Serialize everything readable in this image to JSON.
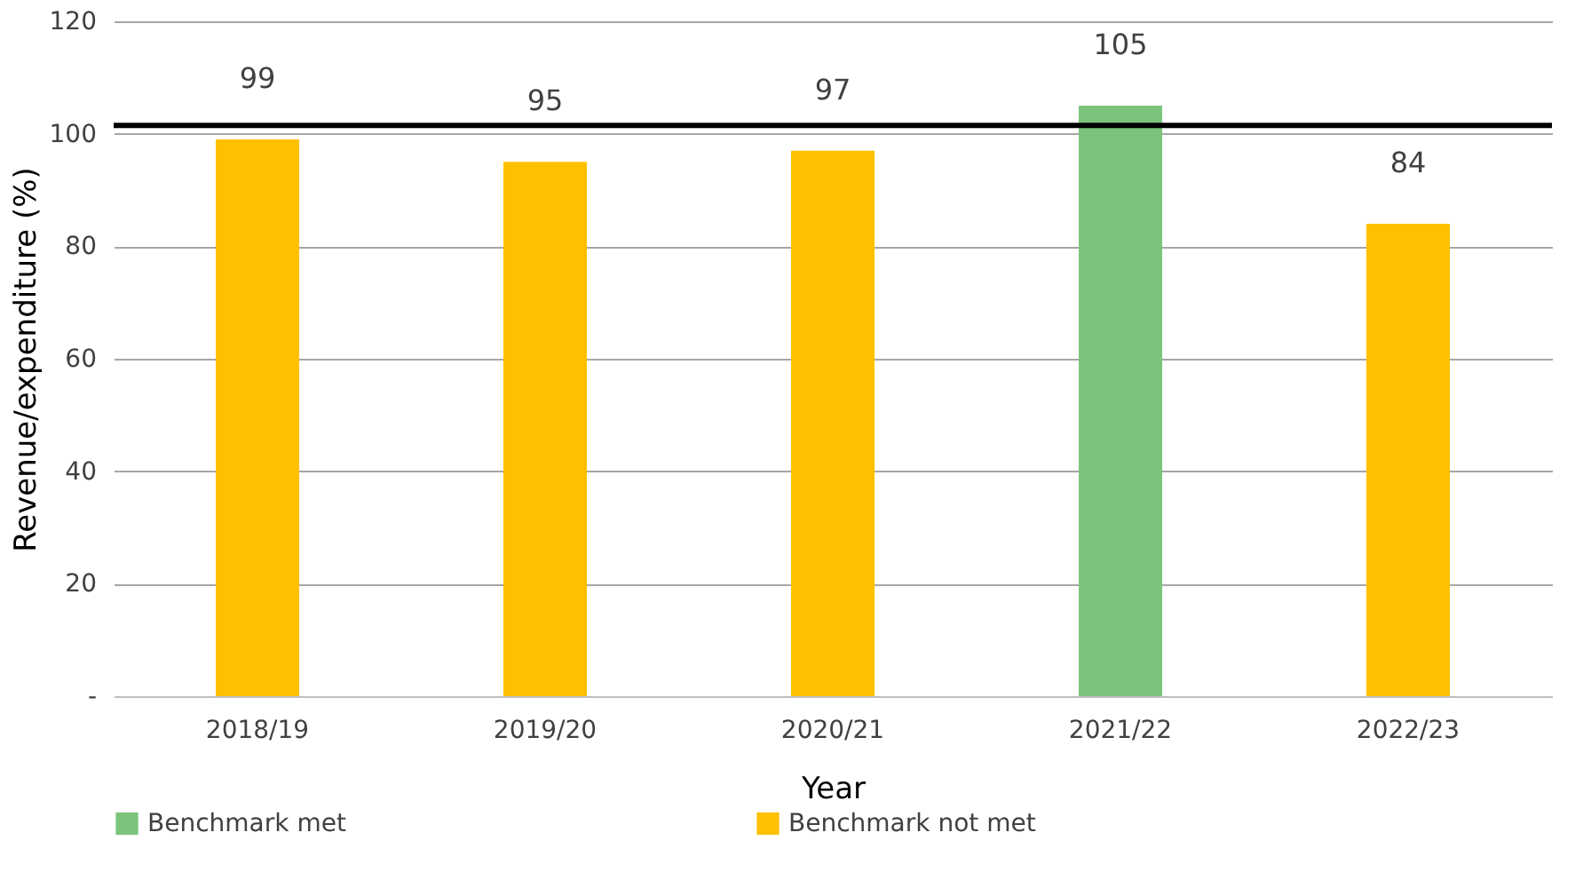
{
  "chart_data": {
    "type": "bar",
    "xlabel": "Year",
    "ylabel": "Revenue/expenditure (%)",
    "categories": [
      "2018/19",
      "2019/20",
      "2020/21",
      "2021/22",
      "2022/23"
    ],
    "series": [
      {
        "name": "Benchmark met",
        "color": "#7cc47c",
        "values": [
          null,
          null,
          null,
          105,
          null
        ]
      },
      {
        "name": "Benchmark not met",
        "color": "#ffc000",
        "values": [
          99,
          95,
          97,
          null,
          84
        ]
      }
    ],
    "ylim": [
      0,
      120
    ],
    "yticks": [
      {
        "value": 0,
        "label": "-"
      },
      20,
      40,
      60,
      80,
      100,
      120
    ],
    "grid": "y",
    "legend": "bottom",
    "data_labels": true,
    "ref_lines": [
      {
        "axis": "y",
        "value": 101.5,
        "label": null,
        "color": "#000000"
      }
    ]
  }
}
